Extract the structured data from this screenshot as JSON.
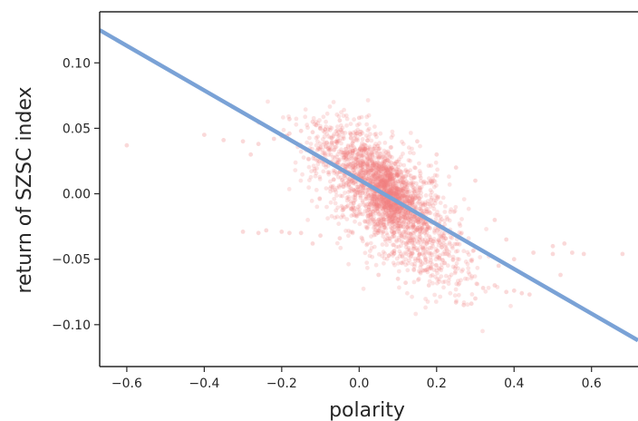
{
  "chart_data": {
    "type": "scatter",
    "title": "",
    "xlabel": "polarity",
    "ylabel": "return of SZSC index",
    "xlim": [
      -0.67,
      0.72
    ],
    "ylim": [
      -0.132,
      0.139
    ],
    "xticks": [
      -0.6,
      -0.4,
      -0.2,
      0.0,
      0.2,
      0.4,
      0.6
    ],
    "xtick_labels": [
      "−0.6",
      "−0.4",
      "−0.2",
      "0.0",
      "0.2",
      "0.4",
      "0.6"
    ],
    "yticks": [
      0.1,
      0.05,
      0.0,
      -0.05,
      -0.1
    ],
    "ytick_labels": [
      "0.10",
      "0.05",
      "0.00",
      "−0.05",
      "−0.10"
    ],
    "grid": false,
    "series": [
      {
        "kind": "points",
        "color": "#f08080",
        "opacity": 0.22,
        "clusters": [
          {
            "x_mean": 0.06,
            "x_sd": 0.085,
            "y_mean": 0.0,
            "y_sd": 0.02,
            "slope": -0.16,
            "count": 1400
          },
          {
            "x_mean": 0.08,
            "x_sd": 0.03,
            "y_mean": 0.0,
            "y_sd": 0.012,
            "slope": -0.2,
            "count": 600
          },
          {
            "x_mean": 0.16,
            "x_sd": 0.07,
            "y_mean": -0.04,
            "y_sd": 0.018,
            "slope": -0.12,
            "count": 350
          },
          {
            "x_mean": -0.02,
            "x_sd": 0.06,
            "y_mean": 0.03,
            "y_sd": 0.012,
            "slope": -0.1,
            "count": 250
          }
        ],
        "points": [
          {
            "x": -0.6,
            "y": 0.037
          },
          {
            "x": -0.4,
            "y": 0.045
          },
          {
            "x": -0.35,
            "y": 0.041
          },
          {
            "x": -0.3,
            "y": 0.04
          },
          {
            "x": -0.28,
            "y": 0.03
          },
          {
            "x": -0.26,
            "y": 0.038
          },
          {
            "x": -0.22,
            "y": 0.042
          },
          {
            "x": -0.2,
            "y": 0.044
          },
          {
            "x": -0.18,
            "y": 0.046
          },
          {
            "x": -0.15,
            "y": 0.048
          },
          {
            "x": -0.12,
            "y": 0.047
          },
          {
            "x": -0.1,
            "y": 0.05
          },
          {
            "x": -0.08,
            "y": 0.049
          },
          {
            "x": -0.18,
            "y": 0.057
          },
          {
            "x": -0.12,
            "y": 0.055
          },
          {
            "x": -0.05,
            "y": 0.056
          },
          {
            "x": 0.0,
            "y": 0.058
          },
          {
            "x": -0.3,
            "y": -0.029
          },
          {
            "x": -0.26,
            "y": -0.03
          },
          {
            "x": -0.24,
            "y": -0.028
          },
          {
            "x": -0.2,
            "y": -0.029
          },
          {
            "x": -0.18,
            "y": -0.03
          },
          {
            "x": -0.15,
            "y": -0.03
          },
          {
            "x": -0.1,
            "y": -0.032
          },
          {
            "x": -0.05,
            "y": -0.034
          },
          {
            "x": -0.12,
            "y": -0.038
          },
          {
            "x": 0.25,
            "y": -0.083
          },
          {
            "x": 0.27,
            "y": -0.085
          },
          {
            "x": 0.29,
            "y": -0.084
          },
          {
            "x": 0.3,
            "y": -0.08
          },
          {
            "x": 0.32,
            "y": -0.072
          },
          {
            "x": 0.35,
            "y": -0.07
          },
          {
            "x": 0.38,
            "y": -0.075
          },
          {
            "x": 0.4,
            "y": -0.074
          },
          {
            "x": 0.42,
            "y": -0.076
          },
          {
            "x": 0.44,
            "y": -0.077
          },
          {
            "x": 0.36,
            "y": -0.055
          },
          {
            "x": 0.4,
            "y": -0.05
          },
          {
            "x": 0.45,
            "y": -0.045
          },
          {
            "x": 0.5,
            "y": -0.046
          },
          {
            "x": 0.55,
            "y": -0.045
          },
          {
            "x": 0.58,
            "y": -0.046
          },
          {
            "x": 0.52,
            "y": -0.062
          },
          {
            "x": 0.5,
            "y": -0.04
          },
          {
            "x": 0.53,
            "y": -0.038
          },
          {
            "x": 0.68,
            "y": -0.046
          },
          {
            "x": 0.15,
            "y": 0.04
          },
          {
            "x": 0.2,
            "y": 0.03
          },
          {
            "x": 0.25,
            "y": 0.02
          },
          {
            "x": 0.3,
            "y": 0.01
          },
          {
            "x": 0.35,
            "y": -0.02
          },
          {
            "x": 0.38,
            "y": -0.035
          },
          {
            "x": 0.1,
            "y": -0.065
          },
          {
            "x": 0.12,
            "y": -0.068
          },
          {
            "x": 0.05,
            "y": -0.062
          },
          {
            "x": 0.18,
            "y": -0.07
          }
        ]
      },
      {
        "kind": "regression-line",
        "color": "#7aa2d6",
        "points": [
          {
            "x": -0.67,
            "y": 0.125
          },
          {
            "x": 0.72,
            "y": -0.112
          }
        ]
      }
    ]
  }
}
